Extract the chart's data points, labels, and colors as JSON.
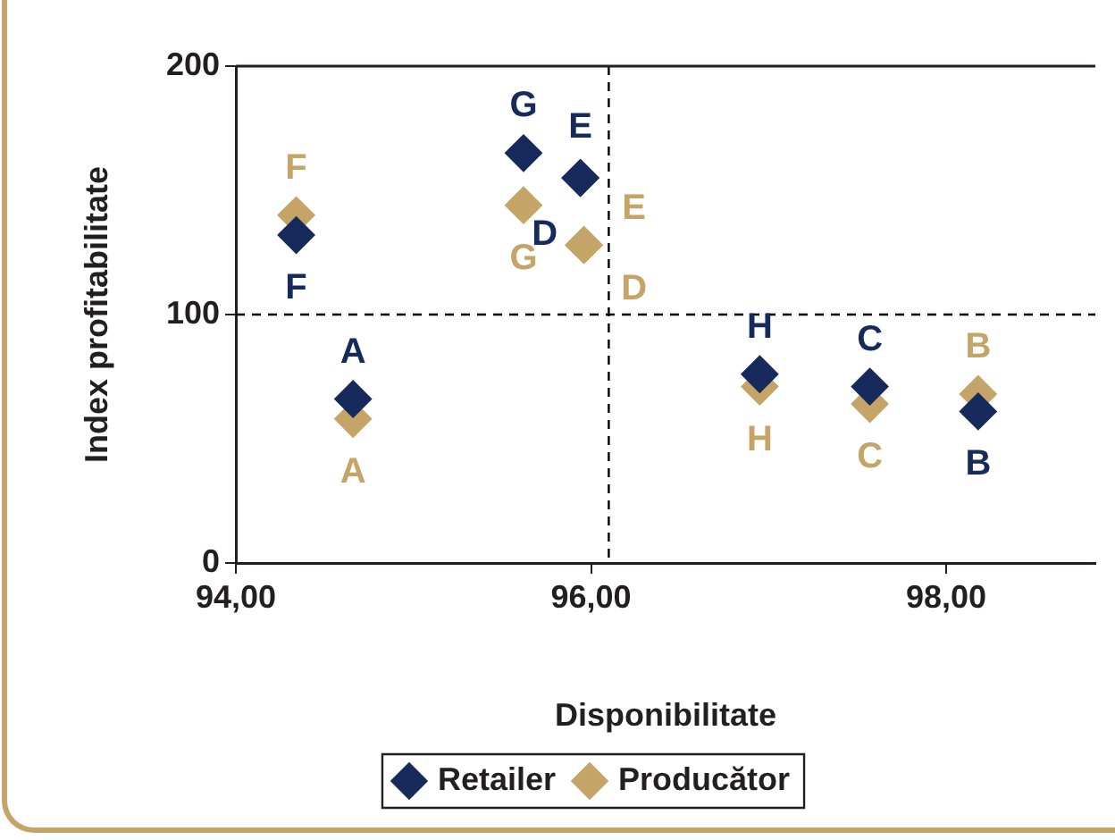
{
  "chart_data": {
    "type": "scatter",
    "xlabel": "Disponibilitate",
    "ylabel": "Index profitabilitate",
    "xlim": [
      94,
      98.84
    ],
    "xticks": [
      {
        "value": 94,
        "label": "94,00"
      },
      {
        "value": 96,
        "label": "96,00"
      },
      {
        "value": 98,
        "label": "98,00"
      }
    ],
    "ylim": [
      0,
      200
    ],
    "yticks": [
      0,
      100,
      200
    ],
    "grid": false,
    "legend": "bottom",
    "marker": "diamond",
    "series": [
      {
        "name": "Retailer",
        "color": "#172a5c",
        "x": [
          94.66,
          98.18,
          97.57,
          95.94,
          95.94,
          94.34,
          95.62,
          96.95
        ],
        "values": [
          66,
          61,
          71,
          155,
          155,
          132,
          165,
          76
        ],
        "value_labels": [
          "A",
          "B",
          "C",
          "D",
          "E",
          "F",
          "G",
          "H"
        ]
      },
      {
        "name": "Producător",
        "color": "#c4a467",
        "x": [
          94.66,
          98.18,
          97.57,
          95.96,
          95.96,
          94.34,
          95.62,
          96.95
        ],
        "values": [
          58,
          68,
          64,
          128,
          128,
          140,
          144,
          71
        ],
        "value_labels": [
          "A",
          "B",
          "C",
          "D",
          "E",
          "F",
          "G",
          "H"
        ]
      }
    ],
    "ref_lines": [
      {
        "axis": "y",
        "value": 100,
        "color": "#000000",
        "line_style": "dashed"
      },
      {
        "axis": "x",
        "value": 96.1,
        "color": "#000000",
        "line_style": "dashed"
      }
    ]
  }
}
